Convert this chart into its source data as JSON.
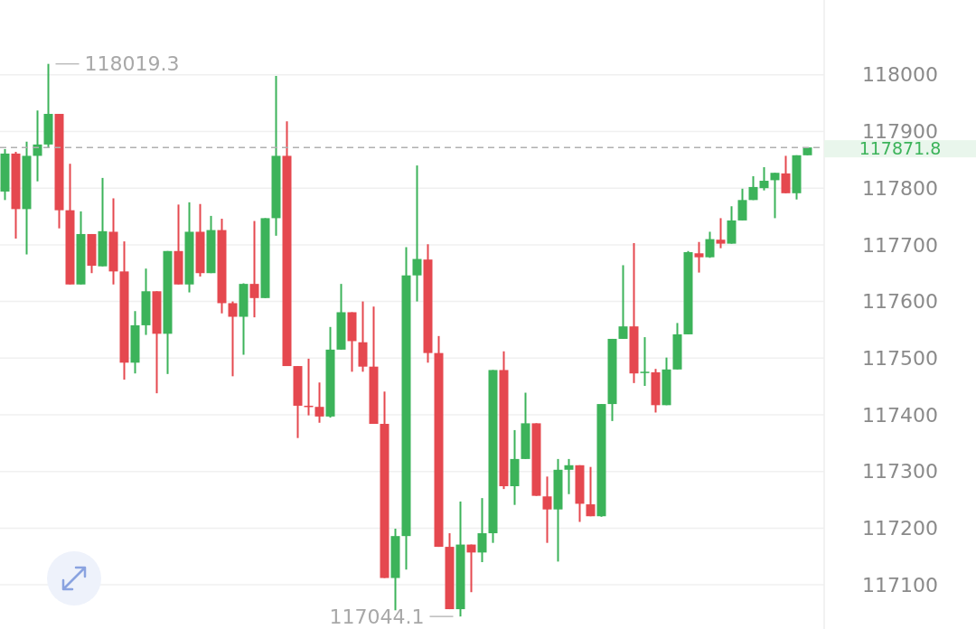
{
  "chart_data": {
    "type": "candlestick",
    "categories": [
      null,
      null,
      null,
      null,
      null,
      null,
      null,
      null,
      null,
      null,
      null,
      null,
      null,
      null,
      null,
      null,
      null,
      null,
      null,
      null,
      null,
      null,
      null,
      null,
      null,
      null,
      null,
      null,
      null,
      null,
      null,
      null,
      null,
      null,
      null,
      null,
      null,
      null,
      null,
      null,
      null,
      null,
      null,
      null,
      null,
      null,
      null,
      null,
      null,
      null,
      null,
      null,
      null,
      null,
      null,
      null,
      null,
      null,
      null,
      null,
      null,
      null,
      null,
      null,
      null,
      null,
      null,
      null,
      null,
      null,
      null,
      null,
      null,
      null,
      null
    ],
    "ohlc": [
      [
        117794,
        117869,
        117779,
        117861
      ],
      [
        117861,
        117864,
        117711,
        117763
      ],
      [
        117763,
        117882,
        117683,
        117857
      ],
      [
        117857,
        117937,
        117812,
        117877
      ],
      [
        117877,
        118019.3,
        117872,
        117931
      ],
      [
        117931,
        117931,
        117729,
        117761
      ],
      [
        117761,
        117843,
        117630,
        117630
      ],
      [
        117630,
        117759,
        117630,
        117719
      ],
      [
        117719,
        117719,
        117650,
        117663
      ],
      [
        117662,
        117818,
        117662,
        117724
      ],
      [
        117723,
        117782,
        117630,
        117653
      ],
      [
        117653,
        117706,
        117462,
        117492
      ],
      [
        117492,
        117583,
        117473,
        117558
      ],
      [
        117558,
        117658,
        117541,
        117618
      ],
      [
        117618,
        117618,
        117438,
        117543
      ],
      [
        117543,
        117689,
        117472,
        117689
      ],
      [
        117689,
        117771,
        117630,
        117630
      ],
      [
        117630,
        117775,
        117616,
        117723
      ],
      [
        117723,
        117772,
        117644,
        117650
      ],
      [
        117650,
        117751,
        117650,
        117726
      ],
      [
        117726,
        117746,
        117579,
        117597
      ],
      [
        117597,
        117600,
        117468,
        117573
      ],
      [
        117573,
        117632,
        117506,
        117631
      ],
      [
        117631,
        117742,
        117572,
        117606
      ],
      [
        117606,
        117747,
        117606,
        117747
      ],
      [
        117747,
        117998,
        117716,
        117857
      ],
      [
        117857,
        117918,
        117486,
        117486
      ],
      [
        117486,
        117486,
        117359,
        117416
      ],
      [
        117416,
        117499,
        117399,
        117415
      ],
      [
        117414,
        117457,
        117386,
        117397
      ],
      [
        117397,
        117555,
        117395,
        117515
      ],
      [
        117515,
        117631,
        117515,
        117581
      ],
      [
        117581,
        117581,
        117476,
        117530
      ],
      [
        117528,
        117600,
        117476,
        117485
      ],
      [
        117485,
        117591,
        117384,
        117384
      ],
      [
        117384,
        117441,
        117112,
        117112
      ],
      [
        117112,
        117199,
        117055,
        117186
      ],
      [
        117186,
        117696,
        117127,
        117646
      ],
      [
        117646,
        117840,
        117600,
        117675
      ],
      [
        117674,
        117701,
        117492,
        117509
      ],
      [
        117509,
        117539,
        117167,
        117167
      ],
      [
        117167,
        117191,
        117057,
        117057
      ],
      [
        117057,
        117247,
        117044.1,
        117171
      ],
      [
        117171,
        117171,
        117087,
        117157
      ],
      [
        117157,
        117253,
        117140,
        117191
      ],
      [
        117191,
        117479,
        117174,
        117479
      ],
      [
        117479,
        117512,
        117269,
        117274
      ],
      [
        117274,
        117373,
        117241,
        117322
      ],
      [
        117322,
        117439,
        117322,
        117385
      ],
      [
        117385,
        117385,
        117257,
        117257
      ],
      [
        117256,
        117291,
        117174,
        117233
      ],
      [
        117233,
        117322,
        117141,
        117303
      ],
      [
        117303,
        117322,
        117260,
        117311
      ],
      [
        117311,
        117311,
        117211,
        117243
      ],
      [
        117242,
        117308,
        117221,
        117221
      ],
      [
        117221,
        117419,
        117220,
        117419
      ],
      [
        117419,
        117534,
        117389,
        117534
      ],
      [
        117534,
        117664,
        117534,
        117556
      ],
      [
        117556,
        117703,
        117456,
        117473
      ],
      [
        117474,
        117537,
        117451,
        117476
      ],
      [
        117475,
        117481,
        117404,
        117417
      ],
      [
        117417,
        117501,
        117417,
        117480
      ],
      [
        117480,
        117562,
        117480,
        117542
      ],
      [
        117542,
        117689,
        117542,
        117687
      ],
      [
        117685,
        117705,
        117651,
        117678
      ],
      [
        117678,
        117723,
        117677,
        117710
      ],
      [
        117709,
        117747,
        117694,
        117702
      ],
      [
        117702,
        117768,
        117702,
        117743
      ],
      [
        117743,
        117799,
        117743,
        117779
      ],
      [
        117779,
        117821,
        117779,
        117802
      ],
      [
        117800,
        117837,
        117796,
        117813
      ],
      [
        117814,
        117827,
        117747,
        117827
      ],
      [
        117826,
        117857,
        117791,
        117791
      ],
      [
        117791,
        117858,
        117780,
        117858
      ],
      [
        117858,
        117872,
        117858,
        117871.8
      ]
    ],
    "colors": [
      "#3cb35a",
      "#e5484f",
      "#3cb35a",
      "#3cb35a",
      "#3cb35a",
      "#e5484f",
      "#e5484f",
      "#3cb35a",
      "#e5484f",
      "#3cb35a",
      "#e5484f",
      "#e5484f",
      "#3cb35a",
      "#3cb35a",
      "#e5484f",
      "#3cb35a",
      "#e5484f",
      "#3cb35a",
      "#e5484f",
      "#3cb35a",
      "#e5484f",
      "#e5484f",
      "#3cb35a",
      "#e5484f",
      "#3cb35a",
      "#3cb35a",
      "#e5484f",
      "#e5484f",
      "#e5484f",
      "#e5484f",
      "#3cb35a",
      "#3cb35a",
      "#e5484f",
      "#e5484f",
      "#e5484f",
      "#e5484f",
      "#3cb35a",
      "#3cb35a",
      "#3cb35a",
      "#e5484f",
      "#e5484f",
      "#e5484f",
      "#3cb35a",
      "#e5484f",
      "#3cb35a",
      "#3cb35a",
      "#e5484f",
      "#3cb35a",
      "#3cb35a",
      "#e5484f",
      "#e5484f",
      "#3cb35a",
      "#3cb35a",
      "#e5484f",
      "#e5484f",
      "#3cb35a",
      "#3cb35a",
      "#3cb35a",
      "#e5484f",
      "#3cb35a",
      "#e5484f",
      "#3cb35a",
      "#3cb35a",
      "#3cb35a",
      "#e5484f",
      "#3cb35a",
      "#e5484f",
      "#3cb35a",
      "#3cb35a",
      "#3cb35a",
      "#3cb35a",
      "#3cb35a",
      "#e5484f",
      "#3cb35a",
      "#3cb35a"
    ],
    "ylim": [
      117022,
      118132
    ],
    "yticks": [
      117100,
      117200,
      117300,
      117400,
      117500,
      117600,
      117700,
      117800,
      117900,
      118000
    ],
    "grid": "y",
    "tick_labels": "y",
    "ref_lines": [
      {
        "axis": "y",
        "value": 117871.8,
        "label": "117871.8",
        "color": "#b0b0b0",
        "line_style": "dashed"
      }
    ],
    "annotations": [
      "118019.3",
      "117044.1"
    ]
  }
}
